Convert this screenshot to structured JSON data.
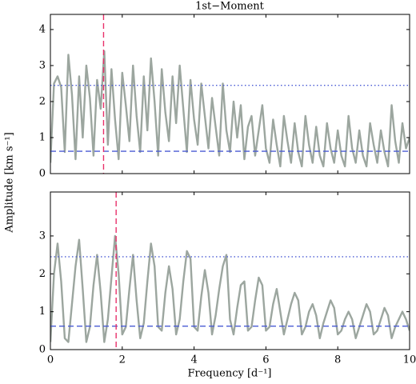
{
  "chart_data": [
    {
      "type": "line",
      "title": "1st−Moment",
      "ylabel": "Amplitude [km s⁻¹]",
      "x": [
        0,
        0.1,
        0.2,
        0.3,
        0.4,
        0.5,
        0.6,
        0.7,
        0.8,
        0.9,
        1.0,
        1.1,
        1.2,
        1.3,
        1.4,
        1.5,
        1.6,
        1.7,
        1.8,
        1.9,
        2.0,
        2.1,
        2.2,
        2.3,
        2.4,
        2.5,
        2.6,
        2.7,
        2.8,
        2.9,
        3.0,
        3.1,
        3.2,
        3.3,
        3.4,
        3.5,
        3.6,
        3.7,
        3.8,
        3.9,
        4.0,
        4.1,
        4.2,
        4.3,
        4.4,
        4.5,
        4.6,
        4.7,
        4.8,
        4.9,
        5.0,
        5.1,
        5.2,
        5.3,
        5.4,
        5.5,
        5.6,
        5.7,
        5.8,
        5.9,
        6.0,
        6.1,
        6.2,
        6.3,
        6.4,
        6.5,
        6.6,
        6.7,
        6.8,
        6.9,
        7.0,
        7.1,
        7.2,
        7.3,
        7.4,
        7.5,
        7.6,
        7.7,
        7.8,
        7.9,
        8.0,
        8.1,
        8.2,
        8.3,
        8.4,
        8.5,
        8.6,
        8.7,
        8.8,
        8.9,
        9.0,
        9.1,
        9.2,
        9.3,
        9.4,
        9.5,
        9.6,
        9.7,
        9.8,
        9.9,
        10.0
      ],
      "series": [
        {
          "color": "#9ca69f",
          "values": [
            0.3,
            2.5,
            2.7,
            2.4,
            0.6,
            3.3,
            2.2,
            0.4,
            2.7,
            1.0,
            3.0,
            2.1,
            0.5,
            2.6,
            1.8,
            3.4,
            0.8,
            2.9,
            1.5,
            0.4,
            2.8,
            1.9,
            0.9,
            3.0,
            1.6,
            0.6,
            2.7,
            1.2,
            3.2,
            2.0,
            0.5,
            2.9,
            1.7,
            0.9,
            2.7,
            1.4,
            3.0,
            1.8,
            0.6,
            2.6,
            1.5,
            0.8,
            2.5,
            1.6,
            0.7,
            2.1,
            1.3,
            0.5,
            2.5,
            1.2,
            0.6,
            2.0,
            1.0,
            1.9,
            0.4,
            1.3,
            1.6,
            0.5,
            1.2,
            1.9,
            0.7,
            0.3,
            1.5,
            0.8,
            0.2,
            1.6,
            0.9,
            0.3,
            1.4,
            0.6,
            0.2,
            1.6,
            0.8,
            0.3,
            1.3,
            0.5,
            0.2,
            1.4,
            0.7,
            0.3,
            1.2,
            0.5,
            0.2,
            1.6,
            0.7,
            0.3,
            1.2,
            0.5,
            0.2,
            1.4,
            0.8,
            0.3,
            1.2,
            0.6,
            0.2,
            1.9,
            0.9,
            0.3,
            1.4,
            0.7,
            1.0
          ]
        }
      ],
      "xlim": [
        0,
        10
      ],
      "xticks": [
        0,
        2,
        4,
        6,
        8,
        10
      ],
      "show_xtick_labels": false,
      "ylim": [
        0,
        4.42
      ],
      "yticks": [
        0,
        1,
        2,
        3,
        4
      ],
      "hlines": [
        {
          "value": 2.45,
          "style": "dotted",
          "color": "#4a5bd4"
        },
        {
          "value": 0.62,
          "style": "dashed",
          "color": "#4a5bd4"
        }
      ],
      "vlines": [
        {
          "value": 1.48,
          "style": "dashed",
          "color": "#e8306a"
        }
      ]
    },
    {
      "type": "line",
      "xlabel": "Frequency [d⁻¹]",
      "x": [
        0,
        0.1,
        0.2,
        0.3,
        0.4,
        0.5,
        0.6,
        0.7,
        0.8,
        0.9,
        1.0,
        1.1,
        1.2,
        1.3,
        1.4,
        1.5,
        1.6,
        1.7,
        1.8,
        1.9,
        2.0,
        2.1,
        2.2,
        2.3,
        2.4,
        2.5,
        2.6,
        2.7,
        2.8,
        2.9,
        3.0,
        3.1,
        3.2,
        3.3,
        3.4,
        3.5,
        3.6,
        3.7,
        3.8,
        3.9,
        4.0,
        4.1,
        4.2,
        4.3,
        4.4,
        4.5,
        4.6,
        4.7,
        4.8,
        4.9,
        5.0,
        5.1,
        5.2,
        5.3,
        5.4,
        5.5,
        5.6,
        5.7,
        5.8,
        5.9,
        6.0,
        6.1,
        6.2,
        6.3,
        6.4,
        6.5,
        6.6,
        6.7,
        6.8,
        6.9,
        7.0,
        7.1,
        7.2,
        7.3,
        7.4,
        7.5,
        7.6,
        7.7,
        7.8,
        7.9,
        8.0,
        8.1,
        8.2,
        8.3,
        8.4,
        8.5,
        8.6,
        8.7,
        8.8,
        8.9,
        9.0,
        9.1,
        9.2,
        9.3,
        9.4,
        9.5,
        9.6,
        9.7,
        9.8,
        9.9,
        10.0
      ],
      "series": [
        {
          "color": "#9ca69f",
          "values": [
            0.2,
            2.0,
            2.8,
            1.8,
            0.3,
            0.2,
            1.2,
            2.2,
            2.9,
            1.6,
            0.2,
            0.6,
            1.7,
            2.5,
            1.5,
            0.2,
            0.8,
            1.9,
            3.0,
            2.0,
            0.4,
            0.6,
            1.6,
            2.5,
            1.3,
            0.3,
            0.7,
            1.8,
            2.8,
            2.2,
            0.6,
            0.5,
            1.5,
            2.2,
            1.6,
            0.4,
            0.8,
            1.8,
            2.6,
            2.4,
            0.6,
            0.5,
            1.4,
            2.1,
            1.5,
            0.4,
            0.9,
            1.6,
            2.2,
            2.5,
            0.8,
            0.4,
            1.1,
            1.7,
            1.8,
            0.5,
            0.6,
            1.3,
            1.9,
            1.7,
            0.5,
            0.6,
            1.2,
            1.6,
            1.0,
            0.4,
            0.8,
            1.2,
            1.5,
            1.3,
            0.4,
            0.6,
            1.0,
            1.2,
            0.9,
            0.3,
            0.7,
            1.0,
            1.3,
            1.1,
            0.4,
            0.5,
            0.8,
            1.0,
            0.8,
            0.3,
            0.6,
            0.9,
            1.2,
            1.0,
            0.4,
            0.5,
            0.8,
            1.1,
            0.9,
            0.3,
            0.6,
            0.8,
            1.0,
            0.8,
            0.5
          ]
        }
      ],
      "xlim": [
        0,
        10
      ],
      "xticks": [
        0,
        2,
        4,
        6,
        8,
        10
      ],
      "show_xtick_labels": true,
      "ylim": [
        0,
        4.16
      ],
      "yticks": [
        0,
        1,
        2,
        3
      ],
      "hlines": [
        {
          "value": 2.45,
          "style": "dotted",
          "color": "#4a5bd4"
        },
        {
          "value": 0.62,
          "style": "dashed",
          "color": "#4a5bd4"
        }
      ],
      "vlines": [
        {
          "value": 1.83,
          "style": "dashed",
          "color": "#e8306a"
        }
      ]
    }
  ]
}
